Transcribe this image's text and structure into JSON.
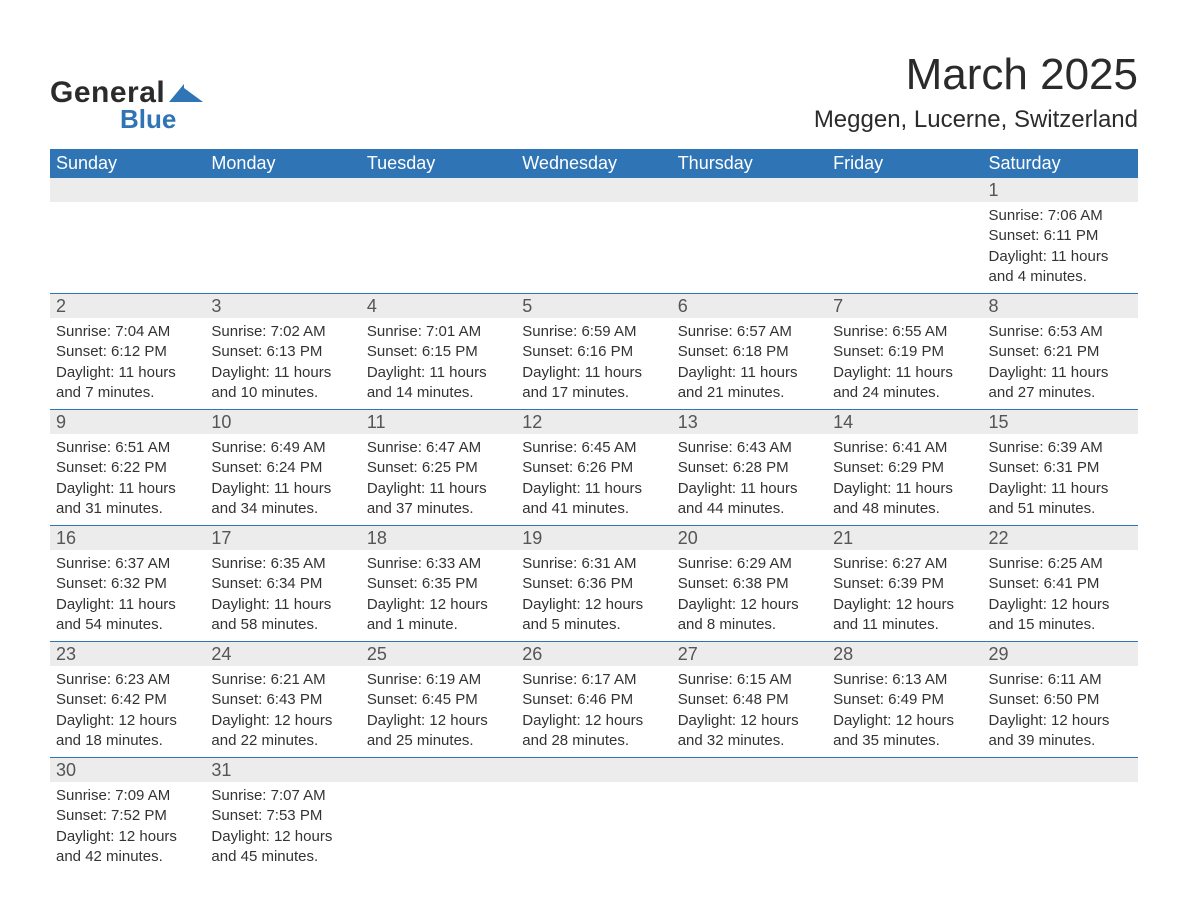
{
  "logo": {
    "line1": "General",
    "line2": "Blue",
    "mark_color": "#2f74b5",
    "text_color": "#2b2b2b"
  },
  "heading": {
    "month": "March 2025",
    "location": "Meggen, Lucerne, Switzerland"
  },
  "colors": {
    "header_bg": "#2f74b5",
    "header_fg": "#ffffff",
    "daynum_bg": "#ececec",
    "daynum_fg": "#555555",
    "body_fg": "#333333",
    "row_border": "#2f74b5",
    "page_bg": "#ffffff"
  },
  "weekdays": [
    "Sunday",
    "Monday",
    "Tuesday",
    "Wednesday",
    "Thursday",
    "Friday",
    "Saturday"
  ],
  "weeks": [
    [
      null,
      null,
      null,
      null,
      null,
      null,
      {
        "n": "1",
        "sunrise": "Sunrise: 7:06 AM",
        "sunset": "Sunset: 6:11 PM",
        "d1": "Daylight: 11 hours",
        "d2": "and 4 minutes."
      }
    ],
    [
      {
        "n": "2",
        "sunrise": "Sunrise: 7:04 AM",
        "sunset": "Sunset: 6:12 PM",
        "d1": "Daylight: 11 hours",
        "d2": "and 7 minutes."
      },
      {
        "n": "3",
        "sunrise": "Sunrise: 7:02 AM",
        "sunset": "Sunset: 6:13 PM",
        "d1": "Daylight: 11 hours",
        "d2": "and 10 minutes."
      },
      {
        "n": "4",
        "sunrise": "Sunrise: 7:01 AM",
        "sunset": "Sunset: 6:15 PM",
        "d1": "Daylight: 11 hours",
        "d2": "and 14 minutes."
      },
      {
        "n": "5",
        "sunrise": "Sunrise: 6:59 AM",
        "sunset": "Sunset: 6:16 PM",
        "d1": "Daylight: 11 hours",
        "d2": "and 17 minutes."
      },
      {
        "n": "6",
        "sunrise": "Sunrise: 6:57 AM",
        "sunset": "Sunset: 6:18 PM",
        "d1": "Daylight: 11 hours",
        "d2": "and 21 minutes."
      },
      {
        "n": "7",
        "sunrise": "Sunrise: 6:55 AM",
        "sunset": "Sunset: 6:19 PM",
        "d1": "Daylight: 11 hours",
        "d2": "and 24 minutes."
      },
      {
        "n": "8",
        "sunrise": "Sunrise: 6:53 AM",
        "sunset": "Sunset: 6:21 PM",
        "d1": "Daylight: 11 hours",
        "d2": "and 27 minutes."
      }
    ],
    [
      {
        "n": "9",
        "sunrise": "Sunrise: 6:51 AM",
        "sunset": "Sunset: 6:22 PM",
        "d1": "Daylight: 11 hours",
        "d2": "and 31 minutes."
      },
      {
        "n": "10",
        "sunrise": "Sunrise: 6:49 AM",
        "sunset": "Sunset: 6:24 PM",
        "d1": "Daylight: 11 hours",
        "d2": "and 34 minutes."
      },
      {
        "n": "11",
        "sunrise": "Sunrise: 6:47 AM",
        "sunset": "Sunset: 6:25 PM",
        "d1": "Daylight: 11 hours",
        "d2": "and 37 minutes."
      },
      {
        "n": "12",
        "sunrise": "Sunrise: 6:45 AM",
        "sunset": "Sunset: 6:26 PM",
        "d1": "Daylight: 11 hours",
        "d2": "and 41 minutes."
      },
      {
        "n": "13",
        "sunrise": "Sunrise: 6:43 AM",
        "sunset": "Sunset: 6:28 PM",
        "d1": "Daylight: 11 hours",
        "d2": "and 44 minutes."
      },
      {
        "n": "14",
        "sunrise": "Sunrise: 6:41 AM",
        "sunset": "Sunset: 6:29 PM",
        "d1": "Daylight: 11 hours",
        "d2": "and 48 minutes."
      },
      {
        "n": "15",
        "sunrise": "Sunrise: 6:39 AM",
        "sunset": "Sunset: 6:31 PM",
        "d1": "Daylight: 11 hours",
        "d2": "and 51 minutes."
      }
    ],
    [
      {
        "n": "16",
        "sunrise": "Sunrise: 6:37 AM",
        "sunset": "Sunset: 6:32 PM",
        "d1": "Daylight: 11 hours",
        "d2": "and 54 minutes."
      },
      {
        "n": "17",
        "sunrise": "Sunrise: 6:35 AM",
        "sunset": "Sunset: 6:34 PM",
        "d1": "Daylight: 11 hours",
        "d2": "and 58 minutes."
      },
      {
        "n": "18",
        "sunrise": "Sunrise: 6:33 AM",
        "sunset": "Sunset: 6:35 PM",
        "d1": "Daylight: 12 hours",
        "d2": "and 1 minute."
      },
      {
        "n": "19",
        "sunrise": "Sunrise: 6:31 AM",
        "sunset": "Sunset: 6:36 PM",
        "d1": "Daylight: 12 hours",
        "d2": "and 5 minutes."
      },
      {
        "n": "20",
        "sunrise": "Sunrise: 6:29 AM",
        "sunset": "Sunset: 6:38 PM",
        "d1": "Daylight: 12 hours",
        "d2": "and 8 minutes."
      },
      {
        "n": "21",
        "sunrise": "Sunrise: 6:27 AM",
        "sunset": "Sunset: 6:39 PM",
        "d1": "Daylight: 12 hours",
        "d2": "and 11 minutes."
      },
      {
        "n": "22",
        "sunrise": "Sunrise: 6:25 AM",
        "sunset": "Sunset: 6:41 PM",
        "d1": "Daylight: 12 hours",
        "d2": "and 15 minutes."
      }
    ],
    [
      {
        "n": "23",
        "sunrise": "Sunrise: 6:23 AM",
        "sunset": "Sunset: 6:42 PM",
        "d1": "Daylight: 12 hours",
        "d2": "and 18 minutes."
      },
      {
        "n": "24",
        "sunrise": "Sunrise: 6:21 AM",
        "sunset": "Sunset: 6:43 PM",
        "d1": "Daylight: 12 hours",
        "d2": "and 22 minutes."
      },
      {
        "n": "25",
        "sunrise": "Sunrise: 6:19 AM",
        "sunset": "Sunset: 6:45 PM",
        "d1": "Daylight: 12 hours",
        "d2": "and 25 minutes."
      },
      {
        "n": "26",
        "sunrise": "Sunrise: 6:17 AM",
        "sunset": "Sunset: 6:46 PM",
        "d1": "Daylight: 12 hours",
        "d2": "and 28 minutes."
      },
      {
        "n": "27",
        "sunrise": "Sunrise: 6:15 AM",
        "sunset": "Sunset: 6:48 PM",
        "d1": "Daylight: 12 hours",
        "d2": "and 32 minutes."
      },
      {
        "n": "28",
        "sunrise": "Sunrise: 6:13 AM",
        "sunset": "Sunset: 6:49 PM",
        "d1": "Daylight: 12 hours",
        "d2": "and 35 minutes."
      },
      {
        "n": "29",
        "sunrise": "Sunrise: 6:11 AM",
        "sunset": "Sunset: 6:50 PM",
        "d1": "Daylight: 12 hours",
        "d2": "and 39 minutes."
      }
    ],
    [
      {
        "n": "30",
        "sunrise": "Sunrise: 7:09 AM",
        "sunset": "Sunset: 7:52 PM",
        "d1": "Daylight: 12 hours",
        "d2": "and 42 minutes."
      },
      {
        "n": "31",
        "sunrise": "Sunrise: 7:07 AM",
        "sunset": "Sunset: 7:53 PM",
        "d1": "Daylight: 12 hours",
        "d2": "and 45 minutes."
      },
      null,
      null,
      null,
      null,
      null
    ]
  ]
}
